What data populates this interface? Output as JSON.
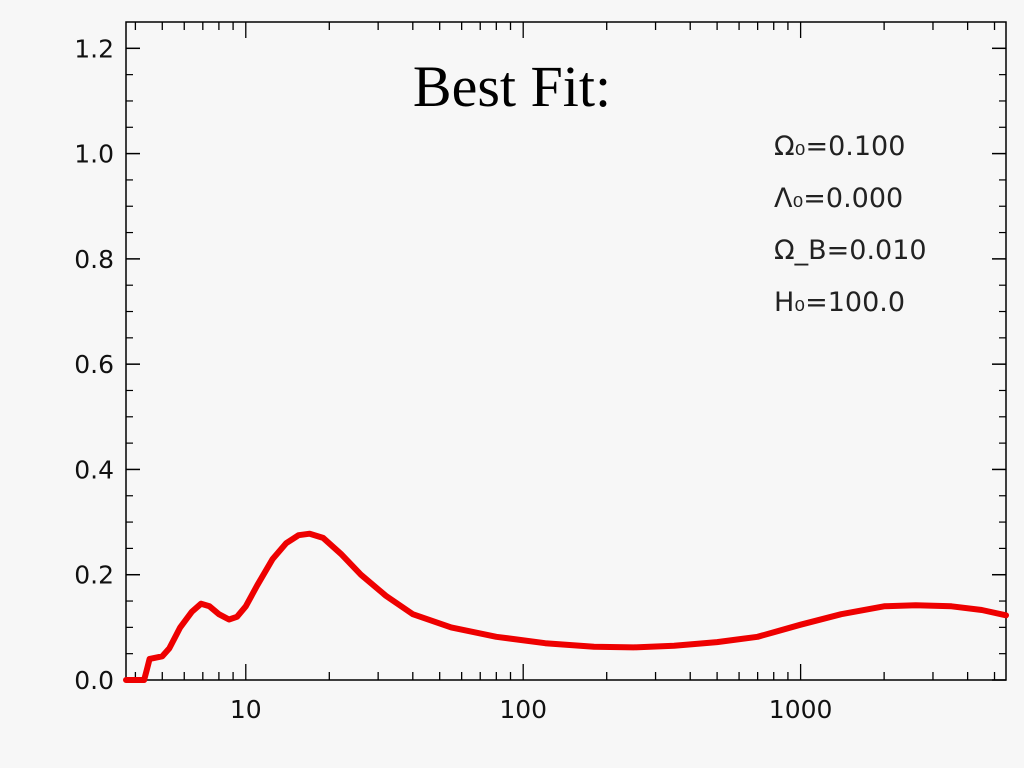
{
  "chart_data": {
    "type": "line",
    "title": "Best Fit:",
    "xlabel": "",
    "ylabel": "",
    "x_scale": "log",
    "xlim": [
      3.7,
      5500
    ],
    "ylim": [
      0.0,
      1.25
    ],
    "x_ticks": [
      10,
      100,
      1000
    ],
    "x_tick_labels": [
      "10",
      "100",
      "1000"
    ],
    "y_ticks": [
      0.0,
      0.2,
      0.4,
      0.6,
      0.8,
      1.0,
      1.2
    ],
    "y_tick_labels": [
      "0.0",
      "0.2",
      "0.4",
      "0.6",
      "0.8",
      "1.0",
      "1.2"
    ],
    "grid": false,
    "legend": "none",
    "annotations": [
      "Ω₀=0.100",
      "Λ₀=0.000",
      "Ω_B=0.010",
      "H₀=100.0"
    ],
    "series": [
      {
        "color": "#ee0000",
        "x": [
          3.7,
          4.3,
          4.4,
          4.5,
          5.0,
          5.3,
          5.8,
          6.4,
          6.9,
          7.4,
          8.0,
          8.7,
          9.3,
          10.0,
          11.0,
          12.5,
          14.0,
          15.5,
          17.0,
          19.0,
          22.0,
          26.0,
          32.0,
          40.0,
          55.0,
          80.0,
          120.0,
          180.0,
          250.0,
          350.0,
          500.0,
          700.0,
          1000.0,
          1400.0,
          2000.0,
          2600.0,
          3500.0,
          4500.0,
          5500.0
        ],
        "y": [
          0.0,
          0.0,
          0.02,
          0.04,
          0.045,
          0.06,
          0.1,
          0.13,
          0.145,
          0.14,
          0.125,
          0.115,
          0.12,
          0.14,
          0.18,
          0.23,
          0.26,
          0.275,
          0.278,
          0.27,
          0.24,
          0.2,
          0.16,
          0.125,
          0.1,
          0.082,
          0.07,
          0.063,
          0.062,
          0.065,
          0.072,
          0.082,
          0.105,
          0.125,
          0.14,
          0.142,
          0.14,
          0.133,
          0.123
        ]
      }
    ]
  }
}
